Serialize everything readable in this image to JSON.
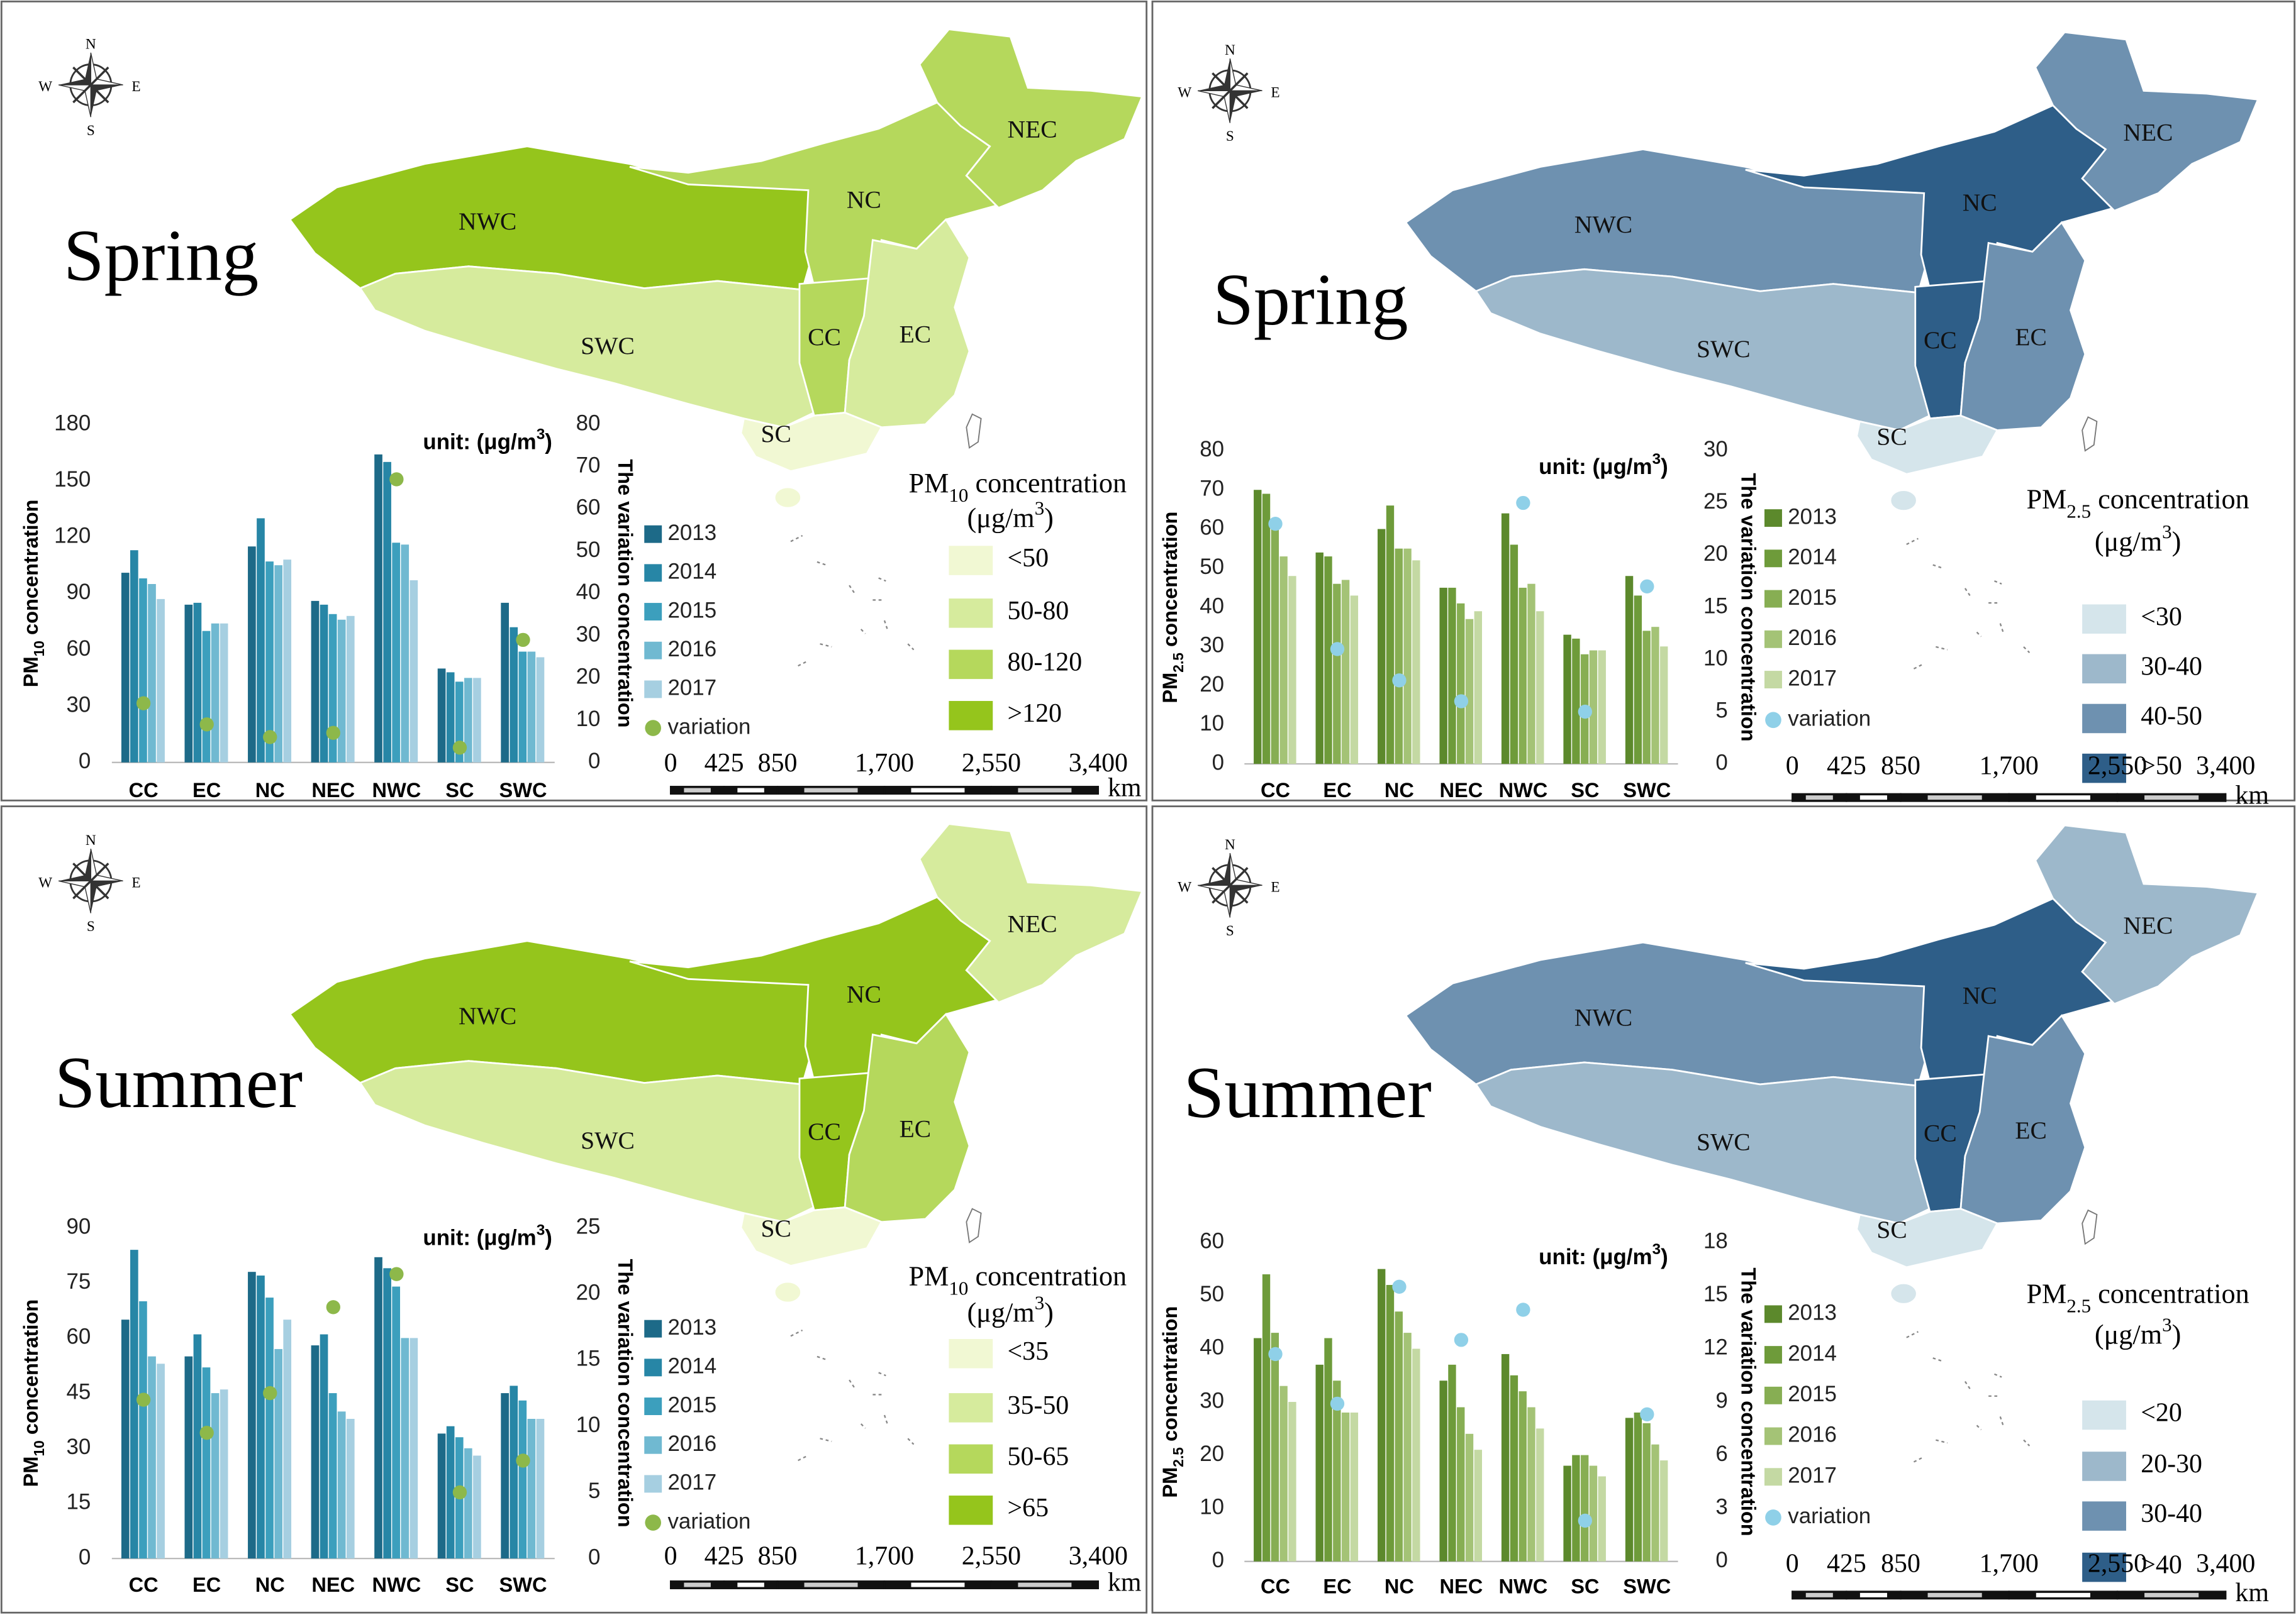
{
  "chart_data": [
    {
      "type": "bar",
      "title": "Spring",
      "compass": [
        "N",
        "E",
        "S",
        "W"
      ],
      "unit_label": [
        "unit: (μg/m",
        {
          "sup": "3"
        },
        ")"
      ],
      "ylabel": [
        "PM",
        {
          "sub": "10"
        },
        " concentration"
      ],
      "y2label": "The variation concentration",
      "categories": [
        "CC",
        "EC",
        "NC",
        "NEC",
        "NWC",
        "SC",
        "SWC"
      ],
      "series": [
        {
          "name": "2013",
          "color": "#1d6a88",
          "values": [
            101,
            84,
            115,
            86,
            164,
            50,
            85
          ]
        },
        {
          "name": "2014",
          "color": "#2786a6",
          "values": [
            113,
            85,
            130,
            84,
            160,
            48,
            72
          ]
        },
        {
          "name": "2015",
          "color": "#3c9fbd",
          "values": [
            98,
            70,
            107,
            79,
            117,
            43,
            59
          ]
        },
        {
          "name": "2016",
          "color": "#70b9d1",
          "values": [
            95,
            74,
            105,
            76,
            116,
            45,
            59
          ]
        },
        {
          "name": "2017",
          "color": "#a6cfe1",
          "values": [
            87,
            74,
            108,
            78,
            97,
            45,
            56
          ]
        },
        {
          "name": "variation",
          "type": "scatter",
          "axis": "y2",
          "color": "#8db84a",
          "values": [
            14,
            9,
            6,
            7,
            67,
            3.5,
            29
          ]
        }
      ],
      "ylim": [
        0,
        180
      ],
      "yticks": [
        0,
        30,
        60,
        90,
        120,
        150,
        180
      ],
      "y2lim": [
        0,
        80
      ],
      "y2ticks": [
        0,
        10,
        20,
        30,
        40,
        50,
        60,
        70,
        80
      ],
      "map": {
        "legend_title": [
          "PM",
          {
            "sub": "10"
          },
          " concentration"
        ],
        "legend_unit": [
          "(μg/m",
          {
            "sup": "3"
          },
          ")"
        ],
        "classes": [
          {
            "label": "<50",
            "color": "#f1f8d3"
          },
          {
            "label": "50-80",
            "color": "#d6eb9d"
          },
          {
            "label": "80-120",
            "color": "#b5d85c"
          },
          {
            "label": ">120",
            "color": "#95c51c"
          }
        ],
        "regions": [
          {
            "name": "NWC",
            "color": "#95c51c"
          },
          {
            "name": "SWC",
            "color": "#d6eb9d"
          },
          {
            "name": "NC",
            "color": "#b5d85c"
          },
          {
            "name": "NEC",
            "color": "#b5d85c"
          },
          {
            "name": "CC",
            "color": "#b5d85c"
          },
          {
            "name": "EC",
            "color": "#d6eb9d"
          },
          {
            "name": "SC",
            "color": "#f1f8d3"
          }
        ],
        "scale_ticks": [
          0,
          425,
          850,
          {
            "value": 1700,
            "label": "1,700"
          },
          {
            "value": 2550,
            "label": "2,550"
          },
          {
            "value": 3400,
            "label": "3,400"
          }
        ],
        "scale_unit": "km"
      }
    },
    {
      "type": "bar",
      "title": "Spring",
      "compass": [
        "N",
        "E",
        "S",
        "W"
      ],
      "unit_label": [
        "unit: (μg/m",
        {
          "sup": "3"
        },
        ")"
      ],
      "ylabel": [
        "PM",
        {
          "sub": "2.5"
        },
        " concentration"
      ],
      "y2label": "The variation concentration",
      "categories": [
        "CC",
        "EC",
        "NC",
        "NEC",
        "NWC",
        "SC",
        "SWC"
      ],
      "series": [
        {
          "name": "2013",
          "color": "#5c892c",
          "values": [
            70,
            54,
            60,
            45,
            64,
            33,
            48
          ]
        },
        {
          "name": "2014",
          "color": "#6e9b3a",
          "values": [
            69,
            53,
            66,
            45,
            56,
            32,
            43
          ]
        },
        {
          "name": "2015",
          "color": "#87ae53",
          "values": [
            60,
            46,
            55,
            41,
            45,
            28,
            34
          ]
        },
        {
          "name": "2016",
          "color": "#a4c376",
          "values": [
            53,
            47,
            55,
            37,
            46,
            29,
            35
          ]
        },
        {
          "name": "2017",
          "color": "#c4d9a3",
          "values": [
            48,
            43,
            52,
            39,
            39,
            29,
            30
          ]
        },
        {
          "name": "variation",
          "type": "scatter",
          "axis": "y2",
          "color": "#8fd0e8",
          "values": [
            23,
            11,
            8,
            6,
            25,
            5,
            17
          ]
        }
      ],
      "ylim": [
        0,
        80
      ],
      "yticks": [
        0,
        10,
        20,
        30,
        40,
        50,
        60,
        70,
        80
      ],
      "y2lim": [
        0,
        30
      ],
      "y2ticks": [
        0,
        5,
        10,
        15,
        20,
        25,
        30
      ],
      "map": {
        "legend_title": [
          "PM",
          {
            "sub": "2.5"
          },
          " concentration"
        ],
        "legend_unit": [
          "(μg/m",
          {
            "sup": "3"
          },
          ")"
        ],
        "classes": [
          {
            "label": "<30",
            "color": "#d5e5eb"
          },
          {
            "label": "30-40",
            "color": "#9db8cb"
          },
          {
            "label": "40-50",
            "color": "#6e91b0"
          },
          {
            "label": ">50",
            "color": "#2e5e88"
          }
        ],
        "regions": [
          {
            "name": "NWC",
            "color": "#6e91b0"
          },
          {
            "name": "SWC",
            "color": "#9db8cb"
          },
          {
            "name": "NC",
            "color": "#2e5e88"
          },
          {
            "name": "NEC",
            "color": "#6e91b0"
          },
          {
            "name": "CC",
            "color": "#2e5e88"
          },
          {
            "name": "EC",
            "color": "#6e91b0"
          },
          {
            "name": "SC",
            "color": "#d5e5eb"
          }
        ],
        "scale_ticks": [
          0,
          425,
          850,
          {
            "value": 1700,
            "label": "1,700"
          },
          {
            "value": 2550,
            "label": "2,550"
          },
          {
            "value": 3400,
            "label": "3,400"
          }
        ],
        "scale_unit": "km"
      }
    },
    {
      "type": "bar",
      "title": "Summer",
      "compass": [
        "N",
        "E",
        "S",
        "W"
      ],
      "unit_label": [
        "unit: (μg/m",
        {
          "sup": "3"
        },
        ")"
      ],
      "ylabel": [
        "PM",
        {
          "sub": "10"
        },
        " concentration"
      ],
      "y2label": "The variation concentration",
      "categories": [
        "CC",
        "EC",
        "NC",
        "NEC",
        "NWC",
        "SC",
        "SWC"
      ],
      "series": [
        {
          "name": "2013",
          "color": "#1d6a88",
          "values": [
            65,
            55,
            78,
            58,
            82,
            34,
            45
          ]
        },
        {
          "name": "2014",
          "color": "#2786a6",
          "values": [
            84,
            61,
            77,
            61,
            79,
            36,
            47
          ]
        },
        {
          "name": "2015",
          "color": "#3c9fbd",
          "values": [
            70,
            52,
            71,
            45,
            74,
            33,
            43
          ]
        },
        {
          "name": "2016",
          "color": "#70b9d1",
          "values": [
            55,
            45,
            57,
            40,
            60,
            30,
            38
          ]
        },
        {
          "name": "2017",
          "color": "#a6cfe1",
          "values": [
            53,
            46,
            65,
            38,
            60,
            28,
            38
          ]
        },
        {
          "name": "variation",
          "type": "scatter",
          "axis": "y2",
          "color": "#8db84a",
          "values": [
            12,
            9.5,
            12.5,
            19,
            21.5,
            5,
            7.4
          ]
        }
      ],
      "ylim": [
        0,
        90
      ],
      "yticks": [
        0,
        15,
        30,
        45,
        60,
        75,
        90
      ],
      "y2lim": [
        0,
        25
      ],
      "y2ticks": [
        0,
        5,
        10,
        15,
        20,
        25
      ],
      "map": {
        "legend_title": [
          "PM",
          {
            "sub": "10"
          },
          " concentration"
        ],
        "legend_unit": [
          "(μg/m",
          {
            "sup": "3"
          },
          ")"
        ],
        "classes": [
          {
            "label": "<35",
            "color": "#f1f8d3"
          },
          {
            "label": "35-50",
            "color": "#d6eb9d"
          },
          {
            "label": "50-65",
            "color": "#b5d85c"
          },
          {
            "label": ">65",
            "color": "#95c51c"
          }
        ],
        "regions": [
          {
            "name": "NWC",
            "color": "#95c51c"
          },
          {
            "name": "SWC",
            "color": "#d6eb9d"
          },
          {
            "name": "NC",
            "color": "#95c51c"
          },
          {
            "name": "NEC",
            "color": "#d6eb9d"
          },
          {
            "name": "CC",
            "color": "#95c51c"
          },
          {
            "name": "EC",
            "color": "#b5d85c"
          },
          {
            "name": "SC",
            "color": "#f1f8d3"
          }
        ],
        "scale_ticks": [
          0,
          425,
          850,
          {
            "value": 1700,
            "label": "1,700"
          },
          {
            "value": 2550,
            "label": "2,550"
          },
          {
            "value": 3400,
            "label": "3,400"
          }
        ],
        "scale_unit": "km"
      }
    },
    {
      "type": "bar",
      "title": "Summer",
      "compass": [
        "N",
        "E",
        "S",
        "W"
      ],
      "unit_label": [
        "unit: (μg/m",
        {
          "sup": "3"
        },
        ")"
      ],
      "ylabel": [
        "PM",
        {
          "sub": "2.5"
        },
        " concentration"
      ],
      "y2label": "The variation concentration",
      "categories": [
        "CC",
        "EC",
        "NC",
        "NEC",
        "NWC",
        "SC",
        "SWC"
      ],
      "series": [
        {
          "name": "2013",
          "color": "#5c892c",
          "values": [
            42,
            37,
            55,
            34,
            39,
            18,
            27
          ]
        },
        {
          "name": "2014",
          "color": "#6e9b3a",
          "values": [
            54,
            42,
            52,
            37,
            35,
            20,
            28
          ]
        },
        {
          "name": "2015",
          "color": "#87ae53",
          "values": [
            43,
            34,
            47,
            29,
            32,
            20,
            26
          ]
        },
        {
          "name": "2016",
          "color": "#a4c376",
          "values": [
            33,
            28,
            43,
            24,
            29,
            18,
            22
          ]
        },
        {
          "name": "2017",
          "color": "#c4d9a3",
          "values": [
            30,
            28,
            40,
            21,
            25,
            16,
            19
          ]
        },
        {
          "name": "variation",
          "type": "scatter",
          "axis": "y2",
          "color": "#8fd0e8",
          "values": [
            11.7,
            8.9,
            15.5,
            12.5,
            14.2,
            2.3,
            8.3
          ]
        }
      ],
      "ylim": [
        0,
        60
      ],
      "yticks": [
        0,
        10,
        20,
        30,
        40,
        50,
        60
      ],
      "y2lim": [
        0,
        18
      ],
      "y2ticks": [
        0,
        3,
        6,
        9,
        12,
        15,
        18
      ],
      "map": {
        "legend_title": [
          "PM",
          {
            "sub": "2.5"
          },
          " concentration"
        ],
        "legend_unit": [
          "(μg/m",
          {
            "sup": "3"
          },
          ")"
        ],
        "classes": [
          {
            "label": "<20",
            "color": "#d5e5eb"
          },
          {
            "label": "20-30",
            "color": "#9db8cb"
          },
          {
            "label": "30-40",
            "color": "#6e91b0"
          },
          {
            "label": ">40",
            "color": "#2e5e88"
          }
        ],
        "regions": [
          {
            "name": "NWC",
            "color": "#6e91b0"
          },
          {
            "name": "SWC",
            "color": "#9db8cb"
          },
          {
            "name": "NC",
            "color": "#2e5e88"
          },
          {
            "name": "NEC",
            "color": "#9db8cb"
          },
          {
            "name": "CC",
            "color": "#2e5e88"
          },
          {
            "name": "EC",
            "color": "#6e91b0"
          },
          {
            "name": "SC",
            "color": "#d5e5eb"
          }
        ],
        "scale_ticks": [
          0,
          425,
          850,
          {
            "value": 1700,
            "label": "1,700"
          },
          {
            "value": 2550,
            "label": "2,550"
          },
          {
            "value": 3400,
            "label": "3,400"
          }
        ],
        "scale_unit": "km"
      }
    }
  ]
}
